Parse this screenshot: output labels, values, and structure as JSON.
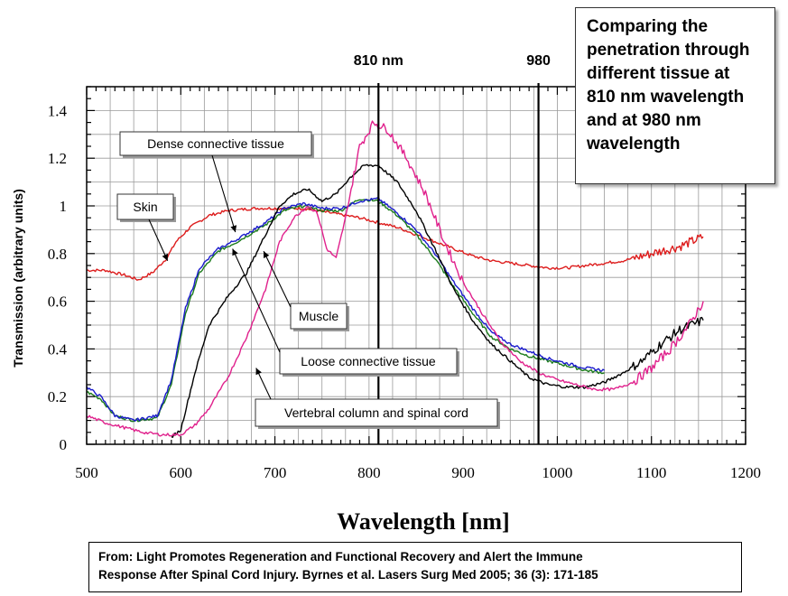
{
  "chart_data": {
    "type": "line",
    "title": "",
    "xlabel": "Wavelength [nm]",
    "ylabel": "Transmission (arbitrary units)",
    "xlim": [
      500,
      1200
    ],
    "ylim": [
      0,
      1.5
    ],
    "x_ticks": [
      500,
      600,
      700,
      800,
      900,
      1000,
      1100,
      1200
    ],
    "y_ticks": [
      0,
      0.2,
      0.4,
      0.6,
      0.8,
      1,
      1.2,
      1.4
    ],
    "grid": true,
    "vertical_lines": [
      {
        "x": 810,
        "label": "810 nm"
      },
      {
        "x": 980,
        "label": "980"
      }
    ],
    "series": [
      {
        "name": "Skin",
        "color": "#dd1c1c",
        "x": [
          500,
          520,
          540,
          555,
          570,
          585,
          595,
          610,
          630,
          650,
          680,
          700,
          730,
          760,
          790,
          810,
          830,
          850,
          870,
          890,
          910,
          930,
          950,
          970,
          990,
          1010,
          1030,
          1050,
          1070,
          1090,
          1110,
          1130,
          1155
        ],
        "y": [
          0.73,
          0.73,
          0.71,
          0.69,
          0.72,
          0.78,
          0.85,
          0.91,
          0.96,
          0.98,
          0.99,
          0.99,
          0.99,
          0.97,
          0.95,
          0.93,
          0.91,
          0.88,
          0.85,
          0.82,
          0.79,
          0.77,
          0.76,
          0.75,
          0.74,
          0.74,
          0.75,
          0.76,
          0.77,
          0.79,
          0.81,
          0.83,
          0.87
        ]
      },
      {
        "name": "Dense connective tissue",
        "color": "#1a7a1a",
        "x": [
          500,
          515,
          530,
          550,
          575,
          590,
          605,
          620,
          640,
          660,
          690,
          710,
          730,
          750,
          770,
          790,
          810,
          830,
          850,
          870,
          890,
          910,
          930,
          950,
          970,
          990,
          1010,
          1030,
          1050
        ],
        "y": [
          0.22,
          0.19,
          0.12,
          0.1,
          0.11,
          0.25,
          0.55,
          0.72,
          0.81,
          0.85,
          0.92,
          0.98,
          1.0,
          0.98,
          0.98,
          1.03,
          1.02,
          0.96,
          0.88,
          0.78,
          0.66,
          0.55,
          0.45,
          0.4,
          0.37,
          0.35,
          0.33,
          0.31,
          0.3
        ]
      },
      {
        "name": "Muscle",
        "color": "#1a1acc",
        "x": [
          500,
          515,
          530,
          550,
          575,
          590,
          605,
          620,
          640,
          660,
          690,
          710,
          730,
          750,
          770,
          790,
          810,
          830,
          850,
          870,
          890,
          910,
          930,
          950,
          970,
          990,
          1010,
          1030,
          1050
        ],
        "y": [
          0.24,
          0.2,
          0.12,
          0.1,
          0.12,
          0.27,
          0.57,
          0.74,
          0.82,
          0.86,
          0.93,
          0.99,
          1.01,
          0.99,
          0.99,
          1.02,
          1.03,
          0.97,
          0.9,
          0.8,
          0.68,
          0.57,
          0.47,
          0.42,
          0.39,
          0.36,
          0.34,
          0.32,
          0.31
        ]
      },
      {
        "name": "Loose connective tissue",
        "color": "#000000",
        "x": [
          590,
          600,
          615,
          630,
          650,
          670,
          690,
          705,
          720,
          735,
          750,
          765,
          780,
          795,
          810,
          830,
          850,
          870,
          890,
          910,
          930,
          950,
          970,
          990,
          1010,
          1030,
          1050,
          1070,
          1090,
          1110,
          1130,
          1155
        ],
        "y": [
          0.03,
          0.06,
          0.3,
          0.5,
          0.62,
          0.72,
          0.88,
          1.0,
          1.05,
          1.07,
          1.02,
          1.05,
          1.12,
          1.17,
          1.17,
          1.1,
          0.98,
          0.82,
          0.65,
          0.52,
          0.42,
          0.35,
          0.28,
          0.25,
          0.24,
          0.24,
          0.26,
          0.3,
          0.35,
          0.42,
          0.48,
          0.52
        ]
      },
      {
        "name": "Vertebral column and spinal cord",
        "color": "#e0208c",
        "x": [
          500,
          520,
          540,
          560,
          580,
          600,
          615,
          630,
          650,
          670,
          690,
          705,
          720,
          735,
          745,
          755,
          765,
          775,
          790,
          805,
          820,
          840,
          860,
          880,
          900,
          920,
          940,
          960,
          980,
          1000,
          1020,
          1040,
          1060,
          1080,
          1100,
          1120,
          1140,
          1155
        ],
        "y": [
          0.12,
          0.09,
          0.07,
          0.05,
          0.04,
          0.04,
          0.08,
          0.15,
          0.28,
          0.45,
          0.65,
          0.85,
          0.95,
          1.0,
          0.97,
          0.82,
          0.78,
          0.95,
          1.25,
          1.35,
          1.32,
          1.2,
          1.05,
          0.85,
          0.68,
          0.55,
          0.43,
          0.35,
          0.3,
          0.27,
          0.25,
          0.23,
          0.23,
          0.26,
          0.32,
          0.4,
          0.5,
          0.6
        ]
      }
    ],
    "annotations": [
      {
        "id": "skin",
        "text": "Skin"
      },
      {
        "id": "dense",
        "text": "Dense connective tissue"
      },
      {
        "id": "muscle",
        "text": "Muscle"
      },
      {
        "id": "loose",
        "text": "Loose connective tissue"
      },
      {
        "id": "vertebral",
        "text": "Vertebral column and spinal cord"
      }
    ]
  },
  "title_box": {
    "lines": [
      "Comparing the",
      "penetration through",
      "different tissue at",
      "810 nm wavelength",
      "and at 980 nm",
      "wavelength"
    ]
  },
  "citation": {
    "line1": "From:  Light Promotes Regeneration and Functional Recovery and Alert the Immune",
    "line2": "Response After Spinal Cord Injury. Byrnes et al.  Lasers Surg Med 2005; 36 (3): 171-185"
  }
}
